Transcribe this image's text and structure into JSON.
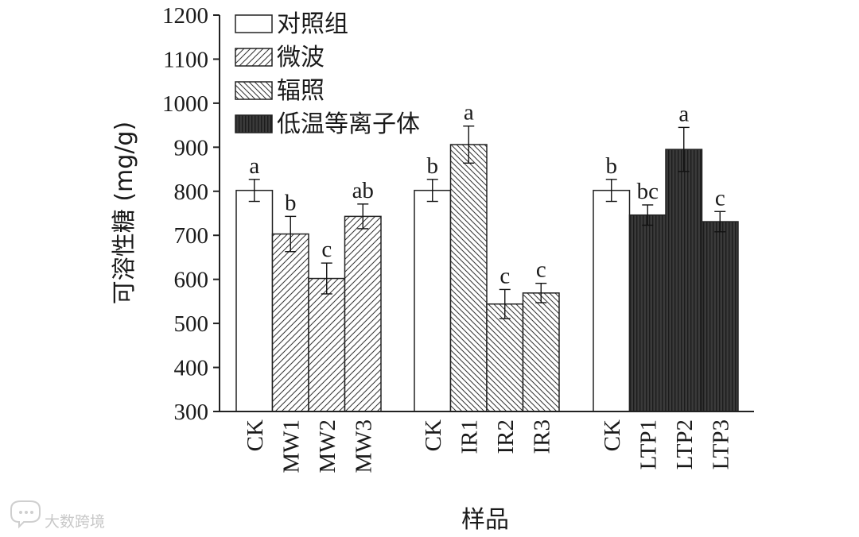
{
  "chart_data": {
    "type": "bar",
    "xlabel": "样品",
    "ylabel": "可溶性糖 (mg/g)",
    "ylim": [
      300,
      1200
    ],
    "yticks": [
      300,
      400,
      500,
      600,
      700,
      800,
      900,
      1000,
      1100,
      1200
    ],
    "legend": {
      "placement": "top-left",
      "entries": [
        {
          "key": "control",
          "label": "对照组"
        },
        {
          "key": "microwave",
          "label": "微波"
        },
        {
          "key": "irradiation",
          "label": "辐照"
        },
        {
          "key": "plasma",
          "label": "低温等离子体"
        }
      ]
    },
    "groups": [
      {
        "bars": [
          {
            "category": "CK",
            "value": 802,
            "error": 25,
            "letter": "a",
            "treatment": "control"
          },
          {
            "category": "MW1",
            "value": 703,
            "error": 40,
            "letter": "b",
            "treatment": "microwave"
          },
          {
            "category": "MW2",
            "value": 602,
            "error": 35,
            "letter": "c",
            "treatment": "microwave"
          },
          {
            "category": "MW3",
            "value": 743,
            "error": 28,
            "letter": "ab",
            "treatment": "microwave"
          }
        ]
      },
      {
        "bars": [
          {
            "category": "CK",
            "value": 802,
            "error": 25,
            "letter": "b",
            "treatment": "control"
          },
          {
            "category": "IR1",
            "value": 906,
            "error": 42,
            "letter": "a",
            "treatment": "irradiation"
          },
          {
            "category": "IR2",
            "value": 544,
            "error": 33,
            "letter": "c",
            "treatment": "irradiation"
          },
          {
            "category": "IR3",
            "value": 569,
            "error": 22,
            "letter": "c",
            "treatment": "irradiation"
          }
        ]
      },
      {
        "bars": [
          {
            "category": "CK",
            "value": 802,
            "error": 25,
            "letter": "b",
            "treatment": "control"
          },
          {
            "category": "LTP1",
            "value": 746,
            "error": 23,
            "letter": "bc",
            "treatment": "plasma"
          },
          {
            "category": "LTP2",
            "value": 895,
            "error": 50,
            "letter": "a",
            "treatment": "plasma"
          },
          {
            "category": "LTP3",
            "value": 731,
            "error": 23,
            "letter": "c",
            "treatment": "plasma"
          }
        ]
      }
    ]
  },
  "watermark": {
    "text": "大数跨境",
    "icon": "speech-bubble-logo-icon"
  }
}
